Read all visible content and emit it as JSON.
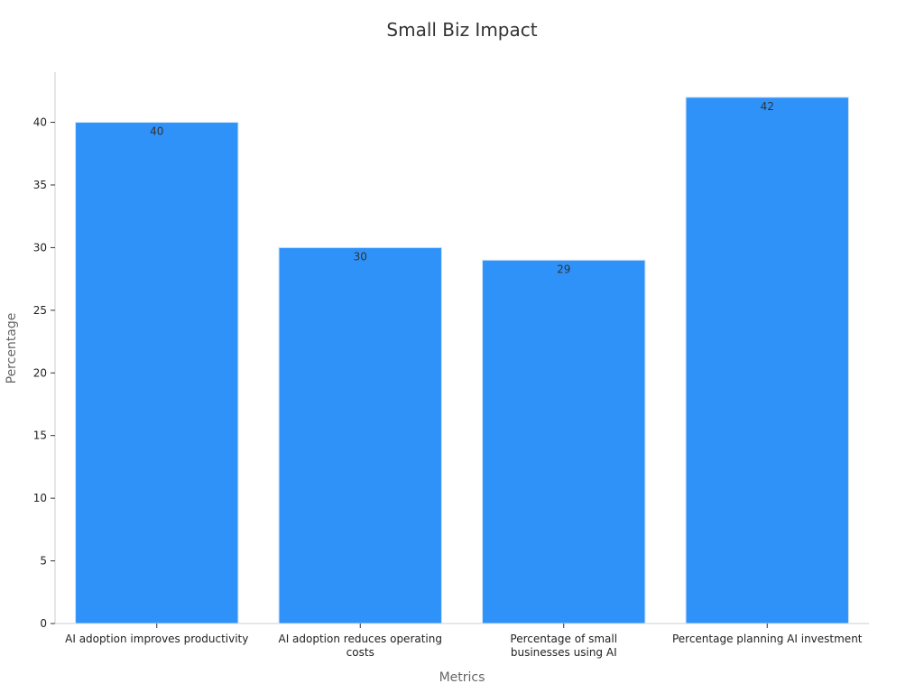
{
  "chart_data": {
    "type": "bar",
    "title": "Small Biz Impact",
    "xlabel": "Metrics",
    "ylabel": "Percentage",
    "categories": [
      [
        "AI adoption improves productivity"
      ],
      [
        "AI adoption reduces operating",
        "costs"
      ],
      [
        "Percentage of small",
        "businesses using AI"
      ],
      [
        "Percentage planning AI investment"
      ]
    ],
    "values": [
      40,
      30,
      29,
      42
    ],
    "ylim": [
      0,
      44
    ],
    "yticks": [
      0,
      5,
      10,
      15,
      20,
      25,
      30,
      35,
      40
    ],
    "grid": false,
    "bar_color": "#2f92f8",
    "bar_edge_color": "#cfe3f7"
  }
}
